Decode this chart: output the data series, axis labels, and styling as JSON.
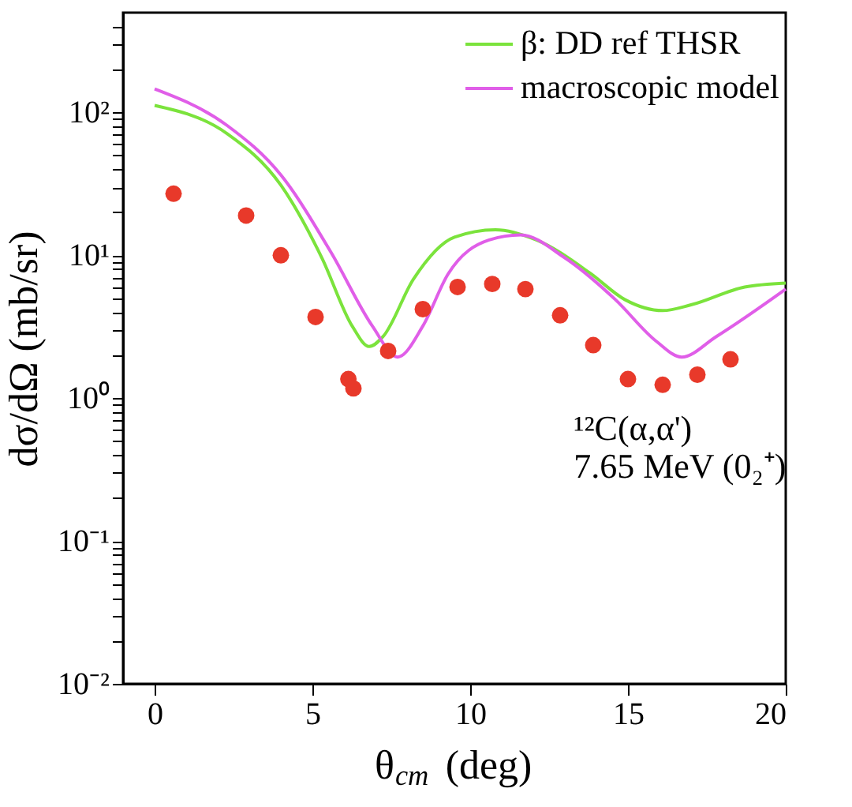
{
  "chart_data": {
    "type": "line",
    "xlabel": "θ$_{cm}$ (deg)",
    "ylabel": "dσ/dΩ (mb/sr)",
    "xlim": [
      -1,
      20
    ],
    "xticks": [
      0,
      5,
      10,
      15,
      20
    ],
    "ylim": [
      0.01,
      500
    ],
    "log": true,
    "legend": "top right",
    "grid": false,
    "yticks": [
      {
        "value": 0.01,
        "label": "10⁻²"
      },
      {
        "value": 0.02,
        "label": null
      },
      {
        "value": 0.03,
        "label": null
      },
      {
        "value": 0.04,
        "label": null
      },
      {
        "value": 0.05,
        "label": null
      },
      {
        "value": 0.06,
        "label": null
      },
      {
        "value": 0.07,
        "label": null
      },
      {
        "value": 0.08,
        "label": null
      },
      {
        "value": 0.09,
        "label": null
      },
      {
        "value": 0.1,
        "label": "10⁻¹"
      },
      {
        "value": 0.2,
        "label": null
      },
      {
        "value": 0.3,
        "label": null
      },
      {
        "value": 0.4,
        "label": null
      },
      {
        "value": 0.5,
        "label": null
      },
      {
        "value": 0.6,
        "label": null
      },
      {
        "value": 0.7,
        "label": null
      },
      {
        "value": 0.8,
        "label": null
      },
      {
        "value": 0.9,
        "label": null
      },
      {
        "value": 1,
        "label": "10⁰"
      },
      {
        "value": 2,
        "label": null
      },
      {
        "value": 3,
        "label": null
      },
      {
        "value": 4,
        "label": null
      },
      {
        "value": 5,
        "label": null
      },
      {
        "value": 6,
        "label": null
      },
      {
        "value": 7,
        "label": null
      },
      {
        "value": 8,
        "label": null
      },
      {
        "value": 9,
        "label": null
      },
      {
        "value": 10,
        "label": "10¹"
      },
      {
        "value": 20,
        "label": null
      },
      {
        "value": 30,
        "label": null
      },
      {
        "value": 40,
        "label": null
      },
      {
        "value": 50,
        "label": null
      },
      {
        "value": 60,
        "label": null
      },
      {
        "value": 70,
        "label": null
      },
      {
        "value": 80,
        "label": null
      },
      {
        "value": 90,
        "label": null
      },
      {
        "value": 100,
        "label": "10²"
      },
      {
        "value": 200,
        "label": null
      },
      {
        "value": 300,
        "label": null
      },
      {
        "value": 400,
        "label": null
      }
    ],
    "annotations": [
      "¹²C(α,α')",
      "7.65 MeV (0₂⁺)"
    ],
    "series": [
      {
        "name": "β: DD ref THSR",
        "color": "#7be33c",
        "x": [
          0,
          2.3,
          4.0,
          5.3,
          6.26,
          6.8,
          7.24,
          8.2,
          9.5,
          10.8,
          12.1,
          13.8,
          14.9,
          16.1,
          17.0,
          18.7,
          20
        ],
        "values": [
          112,
          71,
          31,
          9.6,
          3.2,
          2.3,
          2.7,
          6.8,
          13.4,
          15.1,
          12.8,
          7.5,
          4.9,
          4.1,
          4.5,
          6.0,
          6.4
        ]
      },
      {
        "name": "macroscopic model",
        "color": "#e05ee8",
        "x": [
          0,
          2.3,
          4.0,
          5.6,
          6.9,
          7.7,
          8.5,
          9.3,
          10.6,
          11.6,
          13.0,
          14.6,
          15.9,
          16.7,
          17.8,
          20
        ],
        "values": [
          146,
          81,
          36.5,
          10.4,
          3.2,
          1.94,
          3.2,
          7.4,
          12.8,
          13.9,
          9.6,
          4.9,
          2.5,
          1.94,
          2.7,
          5.8
        ]
      },
      {
        "color": "#e8392a",
        "type": "scatter",
        "marker": "circle",
        "x": [
          0.6,
          2.9,
          4.0,
          5.1,
          6.14,
          6.3,
          7.4,
          8.5,
          9.6,
          10.7,
          11.75,
          12.85,
          13.9,
          15.0,
          16.1,
          17.2,
          18.25
        ],
        "values": [
          27,
          19,
          10,
          3.7,
          1.36,
          1.17,
          2.14,
          4.2,
          6.0,
          6.3,
          5.8,
          3.8,
          2.35,
          1.36,
          1.24,
          1.46,
          1.87
        ]
      }
    ]
  }
}
